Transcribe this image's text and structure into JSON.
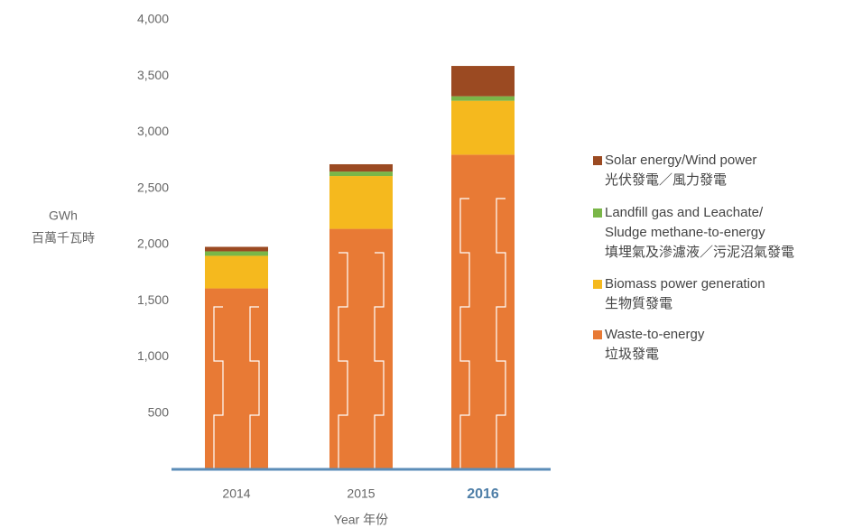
{
  "chart_data": {
    "type": "stacked_bar",
    "y_label": "GWh",
    "y_label_zh": "百萬千瓦時",
    "x_label": "Year 年份",
    "categories": [
      "2014",
      "2015",
      "2016"
    ],
    "ylim": [
      0,
      4000
    ],
    "yticks": [
      {
        "value": 500,
        "label": "500"
      },
      {
        "value": 1000,
        "label": "1,000"
      },
      {
        "value": 1500,
        "label": "1,500"
      },
      {
        "value": 2000,
        "label": "2,000"
      },
      {
        "value": 2500,
        "label": "2,500"
      },
      {
        "value": 3000,
        "label": "3,000"
      },
      {
        "value": 3500,
        "label": "3,500"
      },
      {
        "value": 4000,
        "label": "4,000"
      }
    ],
    "series": [
      {
        "name": "Waste-to-energy",
        "name_zh": "垃圾發電",
        "color": "#e87a35",
        "values": [
          1610,
          2140,
          2800
        ]
      },
      {
        "name": "Biomass power generation",
        "name_zh": "生物質發電",
        "color": "#f5b91e",
        "values": [
          290,
          470,
          480
        ]
      },
      {
        "name": "Landfill gas and Leachate/ Sludge methane-to-energy",
        "name_zh": "填埋氣及滲濾液／污泥沼氣發電",
        "color": "#7ab648",
        "values": [
          40,
          40,
          40
        ]
      },
      {
        "name": "Solar energy/Wind power",
        "name_zh": "光伏發電／風力發電",
        "color": "#9b4a22",
        "values": [
          40,
          65,
          270
        ]
      }
    ]
  }
}
